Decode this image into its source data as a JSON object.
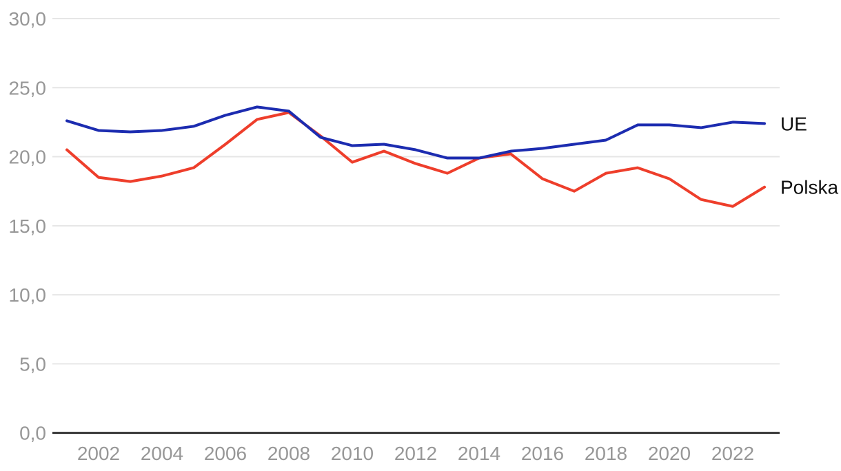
{
  "chart_data": {
    "type": "line",
    "x": [
      2001,
      2002,
      2003,
      2004,
      2005,
      2006,
      2007,
      2008,
      2009,
      2010,
      2011,
      2012,
      2013,
      2014,
      2015,
      2016,
      2017,
      2018,
      2019,
      2020,
      2021,
      2022,
      2023
    ],
    "series": [
      {
        "name": "UE",
        "color": "#1c2cb0",
        "values": [
          22.6,
          21.9,
          21.8,
          21.9,
          22.2,
          23.0,
          23.6,
          23.3,
          21.4,
          20.8,
          20.9,
          20.5,
          19.9,
          19.9,
          20.4,
          20.6,
          20.9,
          21.2,
          22.3,
          22.3,
          22.1,
          22.5,
          22.4
        ]
      },
      {
        "name": "Polska",
        "color": "#ee3e2b",
        "values": [
          20.5,
          18.5,
          18.2,
          18.6,
          19.2,
          20.9,
          22.7,
          23.2,
          21.5,
          19.6,
          20.4,
          19.5,
          18.8,
          19.9,
          20.2,
          18.4,
          17.5,
          18.8,
          19.2,
          18.4,
          16.9,
          16.4,
          17.8
        ]
      }
    ],
    "title": "",
    "xlabel": "",
    "ylabel": "",
    "ylim": [
      0,
      30
    ],
    "y_ticks": [
      0,
      5,
      10,
      15,
      20,
      25,
      30
    ],
    "y_tick_labels": [
      "0,0",
      "5,0",
      "10,0",
      "15,0",
      "20,0",
      "25,0",
      "30,0"
    ],
    "x_tick_labels": [
      "2002",
      "2004",
      "2006",
      "2008",
      "2010",
      "2012",
      "2014",
      "2016",
      "2018",
      "2020",
      "2022"
    ],
    "grid": "horizontal-only",
    "legend_position": "right-end-of-line-labels",
    "decimal_separator": ","
  }
}
